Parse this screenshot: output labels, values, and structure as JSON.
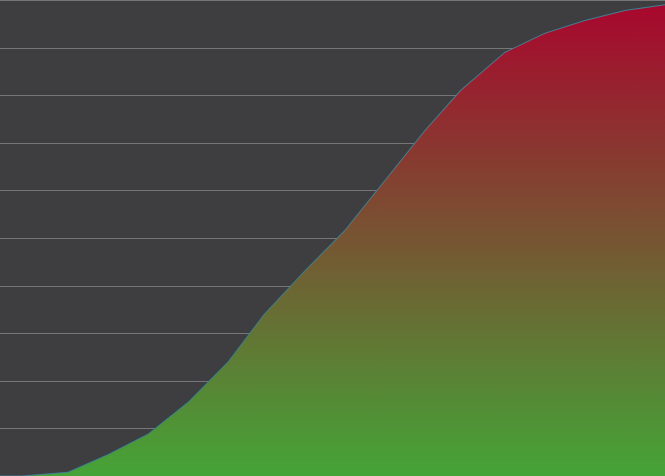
{
  "chart_data": {
    "type": "area",
    "title": "",
    "xlabel": "",
    "ylabel": "",
    "grid": true,
    "legend": "none",
    "background_color": "#3e3e40",
    "grid_color": "#8a8a8a",
    "line_color": "#3f7f92",
    "gradient_top_color": "#a8072d",
    "gradient_bottom_color": "#45a437",
    "xlim": [
      0,
      16.6
    ],
    "ylim": [
      0,
      10
    ],
    "x": [
      0,
      0.55,
      1.7,
      2.7,
      3.7,
      4.7,
      5.7,
      6.6,
      7.6,
      8.6,
      9.6,
      10.6,
      11.5,
      12.6,
      13.6,
      14.6,
      15.6,
      16.6
    ],
    "series": [
      {
        "values": [
          0.0,
          0.0,
          0.08,
          0.45,
          0.88,
          1.55,
          2.4,
          3.4,
          4.3,
          5.15,
          6.2,
          7.25,
          8.1,
          8.9,
          9.3,
          9.57,
          9.78,
          9.9
        ]
      }
    ]
  }
}
